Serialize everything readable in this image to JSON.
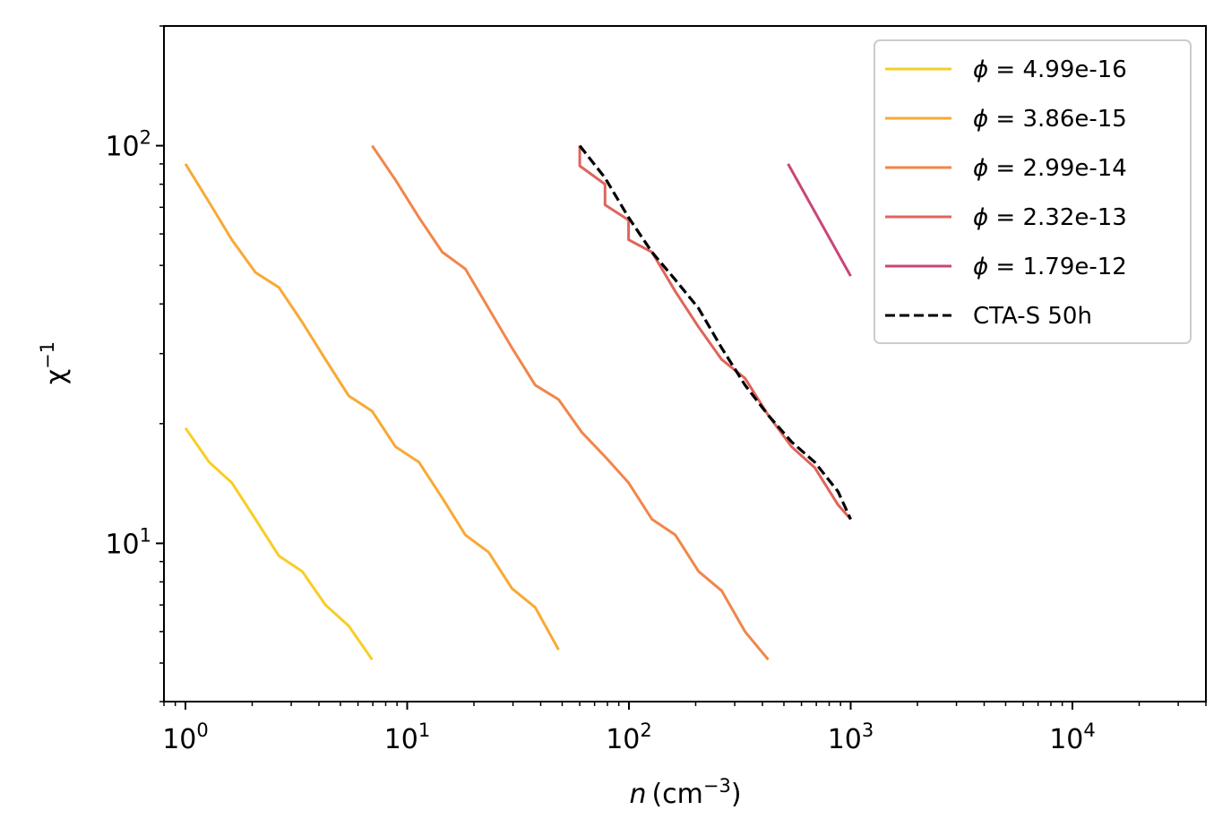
{
  "chart_data": {
    "type": "line",
    "title": "",
    "xscale": "log",
    "yscale": "log",
    "xlim": [
      0.8,
      40000
    ],
    "ylim": [
      4,
      200
    ],
    "xlabel": {
      "var": "n",
      "unit": "(cm",
      "exp": "−3",
      "close": ")"
    },
    "ylabel": {
      "base": "χ",
      "exp": "−1"
    },
    "xticks": [
      {
        "value": 1,
        "base": "10",
        "exp": "0"
      },
      {
        "value": 10,
        "base": "10",
        "exp": "1"
      },
      {
        "value": 100,
        "base": "10",
        "exp": "2"
      },
      {
        "value": 1000,
        "base": "10",
        "exp": "3"
      },
      {
        "value": 10000,
        "base": "10",
        "exp": "4"
      }
    ],
    "yticks": [
      {
        "value": 10,
        "base": "10",
        "exp": "1"
      },
      {
        "value": 100,
        "base": "10",
        "exp": "2"
      }
    ],
    "legend_position": "upper-right",
    "series": [
      {
        "name": "ϕ = 4.99e-16",
        "sym": "ϕ",
        "rest": " = 4.99e-16",
        "color": "#f9cd26",
        "style": "solid",
        "x": [
          1.0,
          1.28,
          1.62,
          2.07,
          2.64,
          3.36,
          4.28,
          5.45,
          6.95
        ],
        "y": [
          19.5,
          16.0,
          14.2,
          11.5,
          9.3,
          8.5,
          7.0,
          6.2,
          5.1
        ]
      },
      {
        "name": "ϕ = 3.86e-15",
        "sym": "ϕ",
        "rest": " = 3.86e-15",
        "color": "#f8a935",
        "style": "solid",
        "x": [
          1.0,
          1.28,
          1.62,
          2.07,
          2.64,
          3.36,
          4.28,
          5.45,
          6.95,
          8.85,
          11.3,
          14.4,
          18.3,
          23.3,
          29.7,
          37.8,
          48.2
        ],
        "y": [
          90,
          72,
          58,
          48,
          44,
          36,
          29,
          23.5,
          21.5,
          17.5,
          16.0,
          13.0,
          10.5,
          9.5,
          7.7,
          6.9,
          5.4
        ]
      },
      {
        "name": "ϕ = 2.99e-14",
        "sym": "ϕ",
        "rest": " = 2.99e-14",
        "color": "#f1864a",
        "style": "solid",
        "x": [
          6.95,
          8.85,
          11.3,
          14.4,
          18.3,
          23.3,
          29.7,
          37.8,
          48.2,
          61.4,
          78.2,
          99.6,
          127,
          162,
          206,
          262,
          334,
          425
        ],
        "y": [
          100,
          82,
          66,
          54,
          49,
          39,
          31,
          25,
          23,
          19,
          16.5,
          14.2,
          11.5,
          10.5,
          8.5,
          7.6,
          6.0,
          5.1
        ]
      },
      {
        "name": "ϕ = 2.32e-13",
        "sym": "ϕ",
        "rest": " = 2.32e-13",
        "color": "#e0645c",
        "style": "solid",
        "x": [
          60,
          60,
          78,
          78,
          99.6,
          99.6,
          127,
          162,
          206,
          262,
          334,
          425,
          541,
          689,
          877,
          1000
        ],
        "y": [
          100,
          89,
          80,
          71,
          65,
          58,
          54,
          43,
          35,
          29,
          26,
          21,
          17.5,
          15.5,
          12.5,
          11.5
        ]
      },
      {
        "name": "ϕ = 1.79e-12",
        "sym": "ϕ",
        "rest": " = 1.79e-12",
        "color": "#c8467a",
        "style": "solid",
        "x": [
          522,
          1000
        ],
        "y": [
          90,
          47
        ]
      },
      {
        "name": "CTA-S 50h",
        "sym": "",
        "rest": "CTA-S 50h",
        "color": "#000000",
        "style": "dashed",
        "x": [
          60,
          78,
          99.6,
          127,
          162,
          206,
          262,
          334,
          425,
          541,
          689,
          877,
          1000
        ],
        "y": [
          100,
          83,
          66,
          54,
          46,
          39,
          31,
          25,
          21,
          18,
          16,
          13.5,
          11.5
        ]
      }
    ]
  }
}
